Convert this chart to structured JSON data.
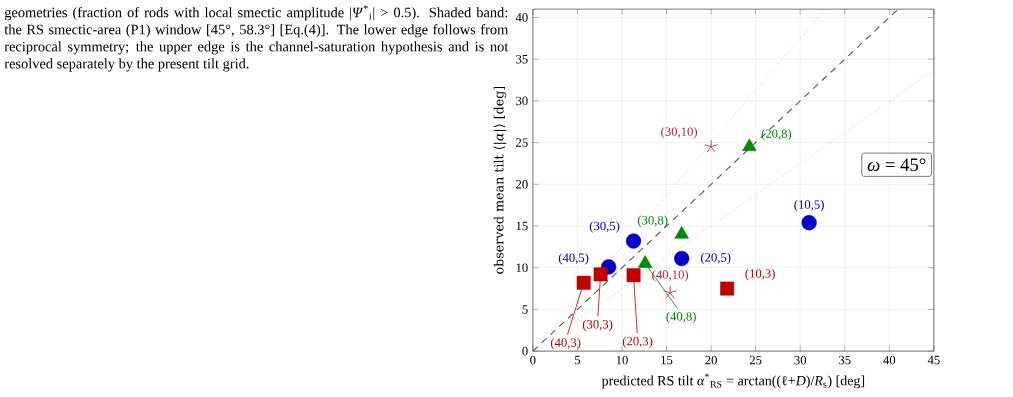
{
  "chart_data": {
    "type": "scatter",
    "xlabel": "predicted RS tilt *α*$^{*}$$_{RS}$ = arctan((ℓ+*D*)/*R*$_{s}$) [deg]",
    "ylabel": "observed mean tilt ⟨|*α*|⟩ [deg]",
    "xlim": [
      0,
      45
    ],
    "ylim": [
      0,
      41
    ],
    "xticks": [
      0,
      5,
      10,
      15,
      20,
      25,
      30,
      35,
      40,
      45
    ],
    "yticks": [
      0,
      5,
      10,
      15,
      20,
      25,
      30,
      35,
      40
    ],
    "grid": true,
    "series": [
      {
        "type": "line",
        "line_style": "dotted",
        "color": "#bbbbbb",
        "x": [
          0,
          32.8
        ],
        "values": [
          0,
          41
        ]
      },
      {
        "type": "line",
        "line_style": "dotted",
        "color": "#bbbbbb",
        "x": [
          0,
          45
        ],
        "values": [
          0,
          33.7
        ]
      },
      {
        "type": "line",
        "line_style": "dashed",
        "color": "#555555",
        "x": [
          0,
          41
        ],
        "values": [
          0,
          41
        ]
      },
      {
        "marker": "circle",
        "color": "#0000c8",
        "x": [
          31.0,
          11.3,
          8.5,
          16.7
        ],
        "values": [
          15.4,
          13.2,
          10.1,
          11.1
        ]
      },
      {
        "marker": "square",
        "color": "#c00000",
        "x": [
          5.7,
          7.6,
          11.3,
          21.8
        ],
        "values": [
          8.2,
          9.2,
          9.1,
          7.5
        ]
      },
      {
        "marker": "triangle",
        "color": "#008a00",
        "x": [
          24.3,
          16.7,
          12.6
        ],
        "values": [
          24.5,
          14.0,
          10.5
        ]
      },
      {
        "marker": "cross",
        "color": "#b0204a",
        "x": [
          20.0,
          15.4
        ],
        "values": [
          24.5,
          7.0
        ]
      }
    ],
    "annotations": [
      "geometries (fraction of rods with local smectic amplitude |*Ψ*$^{*}$$_{i}$| > 0.5). Shaded band: the RS smectic-area (P1) window [45°, 58.3°] [Eq.(4)]. The lower edge follows from reciprocal symmetry; the upper edge is the channel-saturation hypothesis and is not resolved separately by the present tilt grid.",
      "*ω* = 45°",
      {
        "text": "(10,5)",
        "x": 31.0,
        "y": 15.4
      },
      {
        "text": "(30,5)",
        "x": 11.3,
        "y": 13.2
      },
      {
        "text": "(40,5)",
        "x": 8.5,
        "y": 10.1
      },
      {
        "text": "(20,5)",
        "x": 16.7,
        "y": 11.1
      },
      {
        "text": "(40,3)",
        "x": 5.7,
        "y": 8.2
      },
      {
        "text": "(30,3)",
        "x": 7.6,
        "y": 9.2
      },
      {
        "text": "(20,3)",
        "x": 11.3,
        "y": 9.1
      },
      {
        "text": "(10,3)",
        "x": 21.8,
        "y": 7.5
      },
      {
        "text": "(20,8)",
        "x": 24.3,
        "y": 24.5
      },
      {
        "text": "(30,8)",
        "x": 16.7,
        "y": 14.0
      },
      {
        "text": "(40,8)",
        "x": 12.6,
        "y": 10.5
      },
      {
        "text": "(30,10)",
        "x": 20.0,
        "y": 24.5
      },
      {
        "text": "(40,10)",
        "x": 15.4,
        "y": 7.0
      }
    ]
  }
}
